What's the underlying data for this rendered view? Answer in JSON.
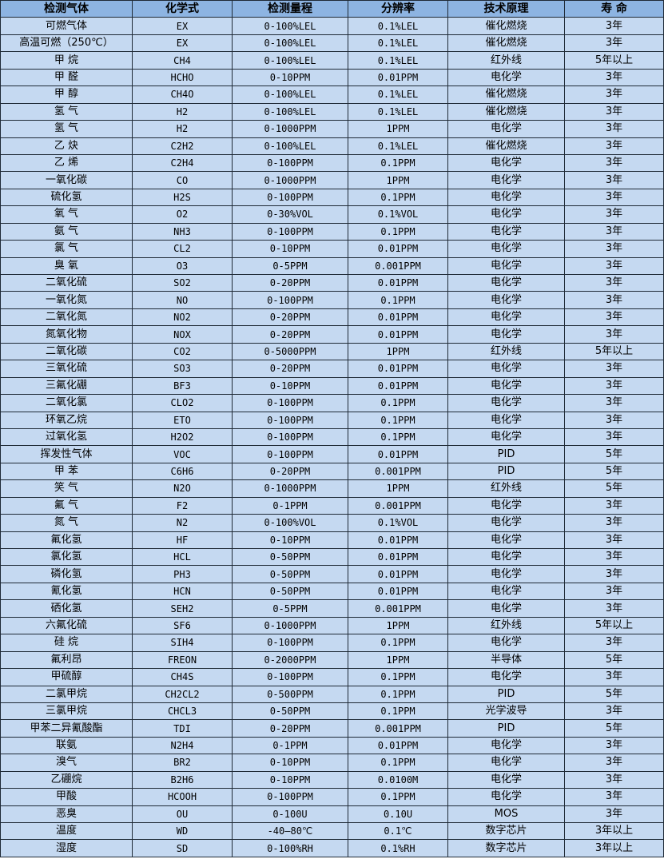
{
  "table": {
    "headers": [
      "检测气体",
      "化学式",
      "检测量程",
      "分辨率",
      "技术原理",
      "寿 命"
    ],
    "rows": [
      [
        "可燃气体",
        "EX",
        "0-100%LEL",
        "0.1%LEL",
        "催化燃烧",
        "3年"
      ],
      [
        "高温可燃（250℃）",
        "EX",
        "0-100%LEL",
        "0.1%LEL",
        "催化燃烧",
        "3年"
      ],
      [
        "甲 烷",
        "CH4",
        "0-100%LEL",
        "0.1%LEL",
        "红外线",
        "5年以上"
      ],
      [
        "甲 醛",
        "HCHO",
        "0-10PPM",
        "0.01PPM",
        "电化学",
        "3年"
      ],
      [
        "甲 醇",
        "CH4O",
        "0-100%LEL",
        "0.1%LEL",
        "催化燃烧",
        "3年"
      ],
      [
        "氢 气",
        "H2",
        "0-100%LEL",
        "0.1%LEL",
        "催化燃烧",
        "3年"
      ],
      [
        "氢 气",
        "H2",
        "0-1000PPM",
        "1PPM",
        "电化学",
        "3年"
      ],
      [
        "乙 炔",
        "C2H2",
        "0-100%LEL",
        "0.1%LEL",
        "催化燃烧",
        "3年"
      ],
      [
        "乙 烯",
        "C2H4",
        "0-100PPM",
        "0.1PPM",
        "电化学",
        "3年"
      ],
      [
        "一氧化碳",
        "CO",
        "0-1000PPM",
        "1PPM",
        "电化学",
        "3年"
      ],
      [
        "硫化氢",
        "H2S",
        "0-100PPM",
        "0.1PPM",
        "电化学",
        "3年"
      ],
      [
        "氧 气",
        "O2",
        "0-30%VOL",
        "0.1%VOL",
        "电化学",
        "3年"
      ],
      [
        "氨 气",
        "NH3",
        "0-100PPM",
        "0.1PPM",
        "电化学",
        "3年"
      ],
      [
        "氯 气",
        "CL2",
        "0-10PPM",
        "0.01PPM",
        "电化学",
        "3年"
      ],
      [
        "臭 氧",
        "O3",
        "0-5PPM",
        "0.001PPM",
        "电化学",
        "3年"
      ],
      [
        "二氧化硫",
        "SO2",
        "0-20PPM",
        "0.01PPM",
        "电化学",
        "3年"
      ],
      [
        "一氧化氮",
        "NO",
        "0-100PPM",
        "0.1PPM",
        "电化学",
        "3年"
      ],
      [
        "二氧化氮",
        "NO2",
        "0-20PPM",
        "0.01PPM",
        "电化学",
        "3年"
      ],
      [
        "氮氧化物",
        "NOX",
        "0-20PPM",
        "0.01PPM",
        "电化学",
        "3年"
      ],
      [
        "二氧化碳",
        "CO2",
        "0-5000PPM",
        "1PPM",
        "红外线",
        "5年以上"
      ],
      [
        "三氧化硫",
        "SO3",
        "0-20PPM",
        "0.01PPM",
        "电化学",
        "3年"
      ],
      [
        "三氟化硼",
        "BF3",
        "0-10PPM",
        "0.01PPM",
        "电化学",
        "3年"
      ],
      [
        "二氧化氯",
        "CLO2",
        "0-100PPM",
        "0.1PPM",
        "电化学",
        "3年"
      ],
      [
        "环氧乙烷",
        "ETO",
        "0-100PPM",
        "0.1PPM",
        "电化学",
        "3年"
      ],
      [
        "过氧化氢",
        "H2O2",
        "0-100PPM",
        "0.1PPM",
        "电化学",
        "3年"
      ],
      [
        "挥发性气体",
        "VOC",
        "0-100PPM",
        "0.01PPM",
        "PID",
        "5年"
      ],
      [
        "甲 苯",
        "C6H6",
        "0-20PPM",
        "0.001PPM",
        "PID",
        "5年"
      ],
      [
        "笑 气",
        "N2O",
        "0-1000PPM",
        "1PPM",
        "红外线",
        "5年"
      ],
      [
        "氟 气",
        "F2",
        "0-1PPM",
        "0.001PPM",
        "电化学",
        "3年"
      ],
      [
        "氮 气",
        "N2",
        "0-100%VOL",
        "0.1%VOL",
        "电化学",
        "3年"
      ],
      [
        "氟化氢",
        "HF",
        "0-10PPM",
        "0.01PPM",
        "电化学",
        "3年"
      ],
      [
        "氯化氢",
        "HCL",
        "0-50PPM",
        "0.01PPM",
        "电化学",
        "3年"
      ],
      [
        "磷化氢",
        "PH3",
        "0-50PPM",
        "0.01PPM",
        "电化学",
        "3年"
      ],
      [
        "氰化氢",
        "HCN",
        "0-50PPM",
        "0.01PPM",
        "电化学",
        "3年"
      ],
      [
        "硒化氢",
        "SEH2",
        "0-5PPM",
        "0.001PPM",
        "电化学",
        "3年"
      ],
      [
        "六氟化硫",
        "SF6",
        "0-1000PPM",
        "1PPM",
        "红外线",
        "5年以上"
      ],
      [
        "硅 烷",
        "SIH4",
        "0-100PPM",
        "0.1PPM",
        "电化学",
        "3年"
      ],
      [
        "氟利昂",
        "FREON",
        "0-2000PPM",
        "1PPM",
        "半导体",
        "5年"
      ],
      [
        "甲硫醇",
        "CH4S",
        "0-100PPM",
        "0.1PPM",
        "电化学",
        "3年"
      ],
      [
        "二氯甲烷",
        "CH2CL2",
        "0-500PPM",
        "0.1PPM",
        "PID",
        "5年"
      ],
      [
        "三氯甲烷",
        "CHCL3",
        "0-50PPM",
        "0.1PPM",
        "光学波导",
        "3年"
      ],
      [
        "甲苯二异氰酸酯",
        "TDI",
        "0-20PPM",
        "0.001PPM",
        "PID",
        "5年"
      ],
      [
        "联氨",
        "N2H4",
        "0-1PPM",
        "0.01PPM",
        "电化学",
        "3年"
      ],
      [
        "溴气",
        "BR2",
        "0-10PPM",
        "0.1PPM",
        "电化学",
        "3年"
      ],
      [
        "乙硼烷",
        "B2H6",
        "0-10PPM",
        "0.0100M",
        "电化学",
        "3年"
      ],
      [
        "甲酸",
        "HCOOH",
        "0-100PPM",
        "0.1PPM",
        "电化学",
        "3年"
      ],
      [
        "恶臭",
        "OU",
        "0-100U",
        "0.10U",
        "MOS",
        "3年"
      ],
      [
        "温度",
        "WD",
        "-40—80℃",
        "0.1℃",
        "数字芯片",
        "3年以上"
      ],
      [
        "湿度",
        "SD",
        "0-100%RH",
        "0.1%RH",
        "数字芯片",
        "3年以上"
      ]
    ]
  },
  "colors": {
    "header_bg": "#8db4e2",
    "row_bg": "#c5d9f1",
    "border": "#1f2a36"
  }
}
